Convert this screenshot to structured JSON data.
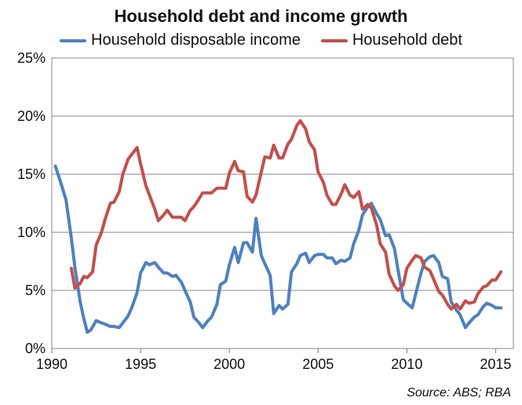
{
  "chart_data": {
    "type": "line",
    "title": "Household debt and income growth",
    "source": "Source: ABS; RBA",
    "xlim": [
      1990,
      2016
    ],
    "ylim": [
      0,
      25
    ],
    "x_ticks": [
      "1990",
      "1995",
      "2000",
      "2005",
      "2010",
      "2015"
    ],
    "x_tick_values": [
      1990,
      1995,
      2000,
      2005,
      2010,
      2015
    ],
    "y_ticks": [
      "0%",
      "5%",
      "10%",
      "15%",
      "20%",
      "25%"
    ],
    "y_tick_values": [
      0,
      5,
      10,
      15,
      20,
      25
    ],
    "grid": "horizontal",
    "legend_position": "top",
    "series": [
      {
        "name": "Household disposable income",
        "color": "#4F81BD",
        "x": [
          1990.2,
          1990.5,
          1990.8,
          1991.1,
          1991.3,
          1991.6,
          1991.8,
          1992.0,
          1992.2,
          1992.5,
          1992.8,
          1993.0,
          1993.3,
          1993.5,
          1993.8,
          1994.0,
          1994.3,
          1994.5,
          1994.8,
          1995.0,
          1995.3,
          1995.5,
          1995.8,
          1996.0,
          1996.3,
          1996.5,
          1996.8,
          1997.0,
          1997.3,
          1997.5,
          1997.8,
          1998.0,
          1998.3,
          1998.5,
          1998.8,
          1999.0,
          1999.3,
          1999.5,
          1999.8,
          2000.0,
          2000.3,
          2000.5,
          2000.8,
          2001.0,
          2001.3,
          2001.5,
          2001.8,
          2002.0,
          2002.3,
          2002.5,
          2002.8,
          2003.0,
          2003.3,
          2003.5,
          2003.8,
          2004.0,
          2004.3,
          2004.5,
          2004.8,
          2005.0,
          2005.3,
          2005.5,
          2005.8,
          2006.0,
          2006.3,
          2006.5,
          2006.8,
          2007.0,
          2007.3,
          2007.5,
          2007.8,
          2008.0,
          2008.3,
          2008.5,
          2008.8,
          2009.0,
          2009.3,
          2009.5,
          2009.8,
          2010.0,
          2010.3,
          2010.5,
          2010.8,
          2011.0,
          2011.3,
          2011.5,
          2011.8,
          2012.0,
          2012.3,
          2012.5,
          2012.8,
          2013.0,
          2013.3,
          2013.5,
          2013.8,
          2014.0,
          2014.3,
          2014.5,
          2014.8,
          2015.0,
          2015.3
        ],
        "y": [
          15.7,
          14.3,
          12.8,
          9.5,
          7.0,
          4.0,
          2.6,
          1.4,
          1.6,
          2.4,
          2.2,
          2.1,
          1.9,
          1.9,
          1.8,
          2.2,
          2.8,
          3.5,
          4.8,
          6.5,
          7.4,
          7.2,
          7.4,
          7.0,
          6.5,
          6.5,
          6.2,
          6.3,
          5.7,
          5.0,
          4.0,
          2.7,
          2.2,
          1.8,
          2.4,
          2.7,
          3.8,
          5.5,
          5.8,
          7.2,
          8.7,
          7.4,
          9.1,
          9.1,
          8.3,
          11.2,
          8.0,
          7.3,
          6.3,
          3.0,
          3.7,
          3.4,
          3.8,
          6.6,
          7.3,
          8.0,
          8.2,
          7.4,
          8.0,
          8.1,
          8.1,
          7.8,
          7.8,
          7.3,
          7.6,
          7.5,
          7.8,
          9.0,
          10.2,
          11.5,
          12.2,
          12.5,
          11.6,
          11.1,
          9.7,
          9.8,
          8.6,
          6.8,
          4.2,
          3.9,
          3.5,
          4.7,
          6.5,
          7.5,
          7.9,
          8.0,
          7.4,
          6.2,
          6.0,
          4.0,
          3.3,
          2.9,
          1.8,
          2.2,
          2.7,
          2.9,
          3.6,
          3.9,
          3.7,
          3.5,
          3.5
        ],
        "values": [
          15.7,
          14.3,
          12.8,
          9.5,
          7.0,
          4.0,
          2.6,
          1.4,
          1.6,
          2.4,
          2.2,
          2.1,
          1.9,
          1.9,
          1.8,
          2.2,
          2.8,
          3.5,
          4.8,
          6.5,
          7.4,
          7.2,
          7.4,
          7.0,
          6.5,
          6.5,
          6.2,
          6.3,
          5.7,
          5.0,
          4.0,
          2.7,
          2.2,
          1.8,
          2.4,
          2.7,
          3.8,
          5.5,
          5.8,
          7.2,
          8.7,
          7.4,
          9.1,
          9.1,
          8.3,
          11.2,
          8.0,
          7.3,
          6.3,
          3.0,
          3.7,
          3.4,
          3.8,
          6.6,
          7.3,
          8.0,
          8.2,
          7.4,
          8.0,
          8.1,
          8.1,
          7.8,
          7.8,
          7.3,
          7.6,
          7.5,
          7.8,
          9.0,
          10.2,
          11.5,
          12.2,
          12.5,
          11.6,
          11.1,
          9.7,
          9.8,
          8.6,
          6.8,
          4.2,
          3.9,
          3.5,
          4.7,
          6.5,
          7.5,
          7.9,
          8.0,
          7.4,
          6.2,
          6.0,
          4.0,
          3.3,
          2.9,
          1.8,
          2.2,
          2.7,
          2.9,
          3.6,
          3.9,
          3.7,
          3.5,
          3.5
        ]
      },
      {
        "name": "Household debt",
        "color": "#C0504D",
        "x": [
          1991.1,
          1991.3,
          1991.6,
          1991.8,
          1992.0,
          1992.3,
          1992.5,
          1992.8,
          1993.0,
          1993.3,
          1993.5,
          1993.8,
          1994.0,
          1994.3,
          1994.5,
          1994.8,
          1995.0,
          1995.3,
          1995.5,
          1995.8,
          1996.0,
          1996.3,
          1996.5,
          1996.8,
          1997.0,
          1997.3,
          1997.5,
          1997.8,
          1998.0,
          1998.3,
          1998.5,
          1998.8,
          1999.0,
          1999.3,
          1999.5,
          1999.8,
          2000.0,
          2000.3,
          2000.5,
          2000.8,
          2001.0,
          2001.3,
          2001.5,
          2001.8,
          2002.0,
          2002.3,
          2002.5,
          2002.8,
          2003.0,
          2003.3,
          2003.5,
          2003.8,
          2004.0,
          2004.3,
          2004.5,
          2004.8,
          2005.0,
          2005.3,
          2005.5,
          2005.8,
          2006.0,
          2006.3,
          2006.5,
          2006.8,
          2007.0,
          2007.3,
          2007.5,
          2007.8,
          2008.0,
          2008.3,
          2008.5,
          2008.8,
          2009.0,
          2009.3,
          2009.5,
          2009.8,
          2010.0,
          2010.3,
          2010.5,
          2010.8,
          2011.0,
          2011.3,
          2011.5,
          2011.8,
          2012.0,
          2012.3,
          2012.5,
          2012.8,
          2013.0,
          2013.3,
          2013.5,
          2013.8,
          2014.0,
          2014.3,
          2014.5,
          2014.8,
          2015.0,
          2015.3
        ],
        "y": [
          6.9,
          5.2,
          5.6,
          6.2,
          6.1,
          6.6,
          8.9,
          10.0,
          11.1,
          12.5,
          12.6,
          13.5,
          15.0,
          16.3,
          16.7,
          17.3,
          15.9,
          14.0,
          13.2,
          12.0,
          11.0,
          11.5,
          11.9,
          11.3,
          11.3,
          11.3,
          11.0,
          11.9,
          12.2,
          12.9,
          13.4,
          13.4,
          13.4,
          13.8,
          13.8,
          13.8,
          15.1,
          16.1,
          15.3,
          15.2,
          13.1,
          12.6,
          13.2,
          15.2,
          16.5,
          16.4,
          17.5,
          16.4,
          16.4,
          17.6,
          18.0,
          19.2,
          19.6,
          18.9,
          17.8,
          17.1,
          15.2,
          14.3,
          13.2,
          12.4,
          12.4,
          13.3,
          14.1,
          13.2,
          13.0,
          13.5,
          12.0,
          12.4,
          12.1,
          10.6,
          9.0,
          8.3,
          6.4,
          5.4,
          5.0,
          5.5,
          6.9,
          7.6,
          8.0,
          7.8,
          7.0,
          6.7,
          6.0,
          4.9,
          4.6,
          3.8,
          3.4,
          3.8,
          3.4,
          4.1,
          3.9,
          4.0,
          4.7,
          5.3,
          5.4,
          5.9,
          5.9,
          6.6
        ],
        "values": [
          6.9,
          5.2,
          5.6,
          6.2,
          6.1,
          6.6,
          8.9,
          10.0,
          11.1,
          12.5,
          12.6,
          13.5,
          15.0,
          16.3,
          16.7,
          17.3,
          15.9,
          14.0,
          13.2,
          12.0,
          11.0,
          11.5,
          11.9,
          11.3,
          11.3,
          11.3,
          11.0,
          11.9,
          12.2,
          12.9,
          13.4,
          13.4,
          13.4,
          13.8,
          13.8,
          13.8,
          15.1,
          16.1,
          15.3,
          15.2,
          13.1,
          12.6,
          13.2,
          15.2,
          16.5,
          16.4,
          17.5,
          16.4,
          16.4,
          17.6,
          18.0,
          19.2,
          19.6,
          18.9,
          17.8,
          17.1,
          15.2,
          14.3,
          13.2,
          12.4,
          12.4,
          13.3,
          14.1,
          13.2,
          13.0,
          13.5,
          12.0,
          12.4,
          12.1,
          10.6,
          9.0,
          8.3,
          6.4,
          5.4,
          5.0,
          5.5,
          6.9,
          7.6,
          8.0,
          7.8,
          7.0,
          6.7,
          6.0,
          4.9,
          4.6,
          3.8,
          3.4,
          3.8,
          3.4,
          4.1,
          3.9,
          4.0,
          4.7,
          5.3,
          5.4,
          5.9,
          5.9,
          6.6
        ]
      }
    ]
  }
}
